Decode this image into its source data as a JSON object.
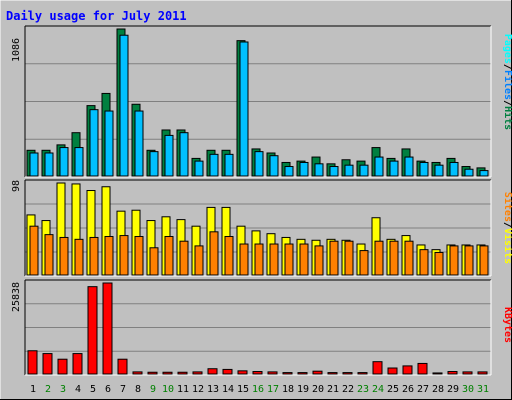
{
  "title": "Daily usage for July 2011",
  "colors": {
    "background": "#c0c0c0",
    "title": "#0000ff",
    "hits": "#008040",
    "files": "#00c0ff",
    "pages": "#00ffff",
    "visits": "#ffff00",
    "sites": "#ff8000",
    "kbytes": "#ff0000",
    "weekday_label": "#000000",
    "weekend_label": "#008000"
  },
  "chart_data": [
    {
      "type": "bar",
      "panel": "hits-files-pages",
      "ymax": 1086,
      "ymax_label": "1086",
      "right_label": {
        "pages": "Pages",
        "sep1": "/",
        "files": "Files",
        "sep2": "/",
        "hits": "Hits"
      },
      "days": [
        "1",
        "2",
        "3",
        "4",
        "5",
        "6",
        "7",
        "8",
        "9",
        "10",
        "11",
        "12",
        "13",
        "14",
        "15",
        "16",
        "17",
        "18",
        "19",
        "20",
        "21",
        "22",
        "23",
        "24",
        "25",
        "26",
        "27",
        "28",
        "29",
        "30",
        "31"
      ],
      "series": [
        {
          "name": "Hits",
          "values": [
            190,
            190,
            230,
            320,
            520,
            610,
            1086,
            530,
            190,
            340,
            340,
            130,
            190,
            190,
            1000,
            200,
            170,
            100,
            110,
            140,
            90,
            120,
            110,
            210,
            130,
            200,
            110,
            100,
            130,
            70,
            60
          ]
        },
        {
          "name": "Files",
          "values": [
            170,
            170,
            210,
            210,
            490,
            480,
            1040,
            480,
            180,
            300,
            320,
            110,
            160,
            160,
            990,
            180,
            150,
            70,
            100,
            90,
            70,
            80,
            80,
            140,
            110,
            140,
            100,
            80,
            100,
            50,
            40
          ]
        }
      ]
    },
    {
      "type": "bar",
      "panel": "visits-sites",
      "ymax": 98,
      "ymax_label": "98",
      "right_label": {
        "sites": "Sites",
        "sep": "/",
        "visits": "Visits"
      },
      "days": [
        "1",
        "2",
        "3",
        "4",
        "5",
        "6",
        "7",
        "8",
        "9",
        "10",
        "11",
        "12",
        "13",
        "14",
        "15",
        "16",
        "17",
        "18",
        "19",
        "20",
        "21",
        "22",
        "23",
        "24",
        "25",
        "26",
        "27",
        "28",
        "29",
        "30",
        "31"
      ],
      "series": [
        {
          "name": "Visits",
          "values": [
            64,
            58,
            98,
            97,
            90,
            94,
            68,
            69,
            58,
            62,
            59,
            52,
            72,
            72,
            52,
            47,
            44,
            40,
            38,
            37,
            38,
            37,
            33,
            61,
            38,
            42,
            32,
            27,
            32,
            32,
            32
          ]
        },
        {
          "name": "Sites",
          "values": [
            52,
            43,
            40,
            38,
            40,
            41,
            42,
            41,
            29,
            41,
            36,
            31,
            46,
            41,
            33,
            33,
            33,
            33,
            33,
            31,
            36,
            36,
            26,
            36,
            36,
            36,
            27,
            24,
            31,
            31,
            31
          ]
        }
      ]
    },
    {
      "type": "bar",
      "panel": "kbytes",
      "ymax": 25838,
      "ymax_label": "25838",
      "right_label": {
        "kbytes": "KBytes"
      },
      "days": [
        "1",
        "2",
        "3",
        "4",
        "5",
        "6",
        "7",
        "8",
        "9",
        "10",
        "11",
        "12",
        "13",
        "14",
        "15",
        "16",
        "17",
        "18",
        "19",
        "20",
        "21",
        "22",
        "23",
        "24",
        "25",
        "26",
        "27",
        "28",
        "29",
        "30",
        "31"
      ],
      "series": [
        {
          "name": "KBytes",
          "values": [
            6600,
            5800,
            4200,
            5800,
            24800,
            25838,
            4200,
            600,
            500,
            500,
            500,
            600,
            1500,
            1300,
            900,
            700,
            600,
            400,
            400,
            800,
            400,
            400,
            400,
            3500,
            1700,
            2300,
            3000,
            300,
            700,
            600,
            600
          ]
        }
      ]
    }
  ],
  "x_labels": [
    "1",
    "2",
    "3",
    "4",
    "5",
    "6",
    "7",
    "8",
    "9",
    "10",
    "11",
    "12",
    "13",
    "14",
    "15",
    "16",
    "17",
    "18",
    "19",
    "20",
    "21",
    "22",
    "23",
    "24",
    "25",
    "26",
    "27",
    "28",
    "29",
    "30",
    "31"
  ],
  "weekend_days": [
    "2",
    "3",
    "9",
    "10",
    "16",
    "17",
    "23",
    "24",
    "30",
    "31"
  ]
}
